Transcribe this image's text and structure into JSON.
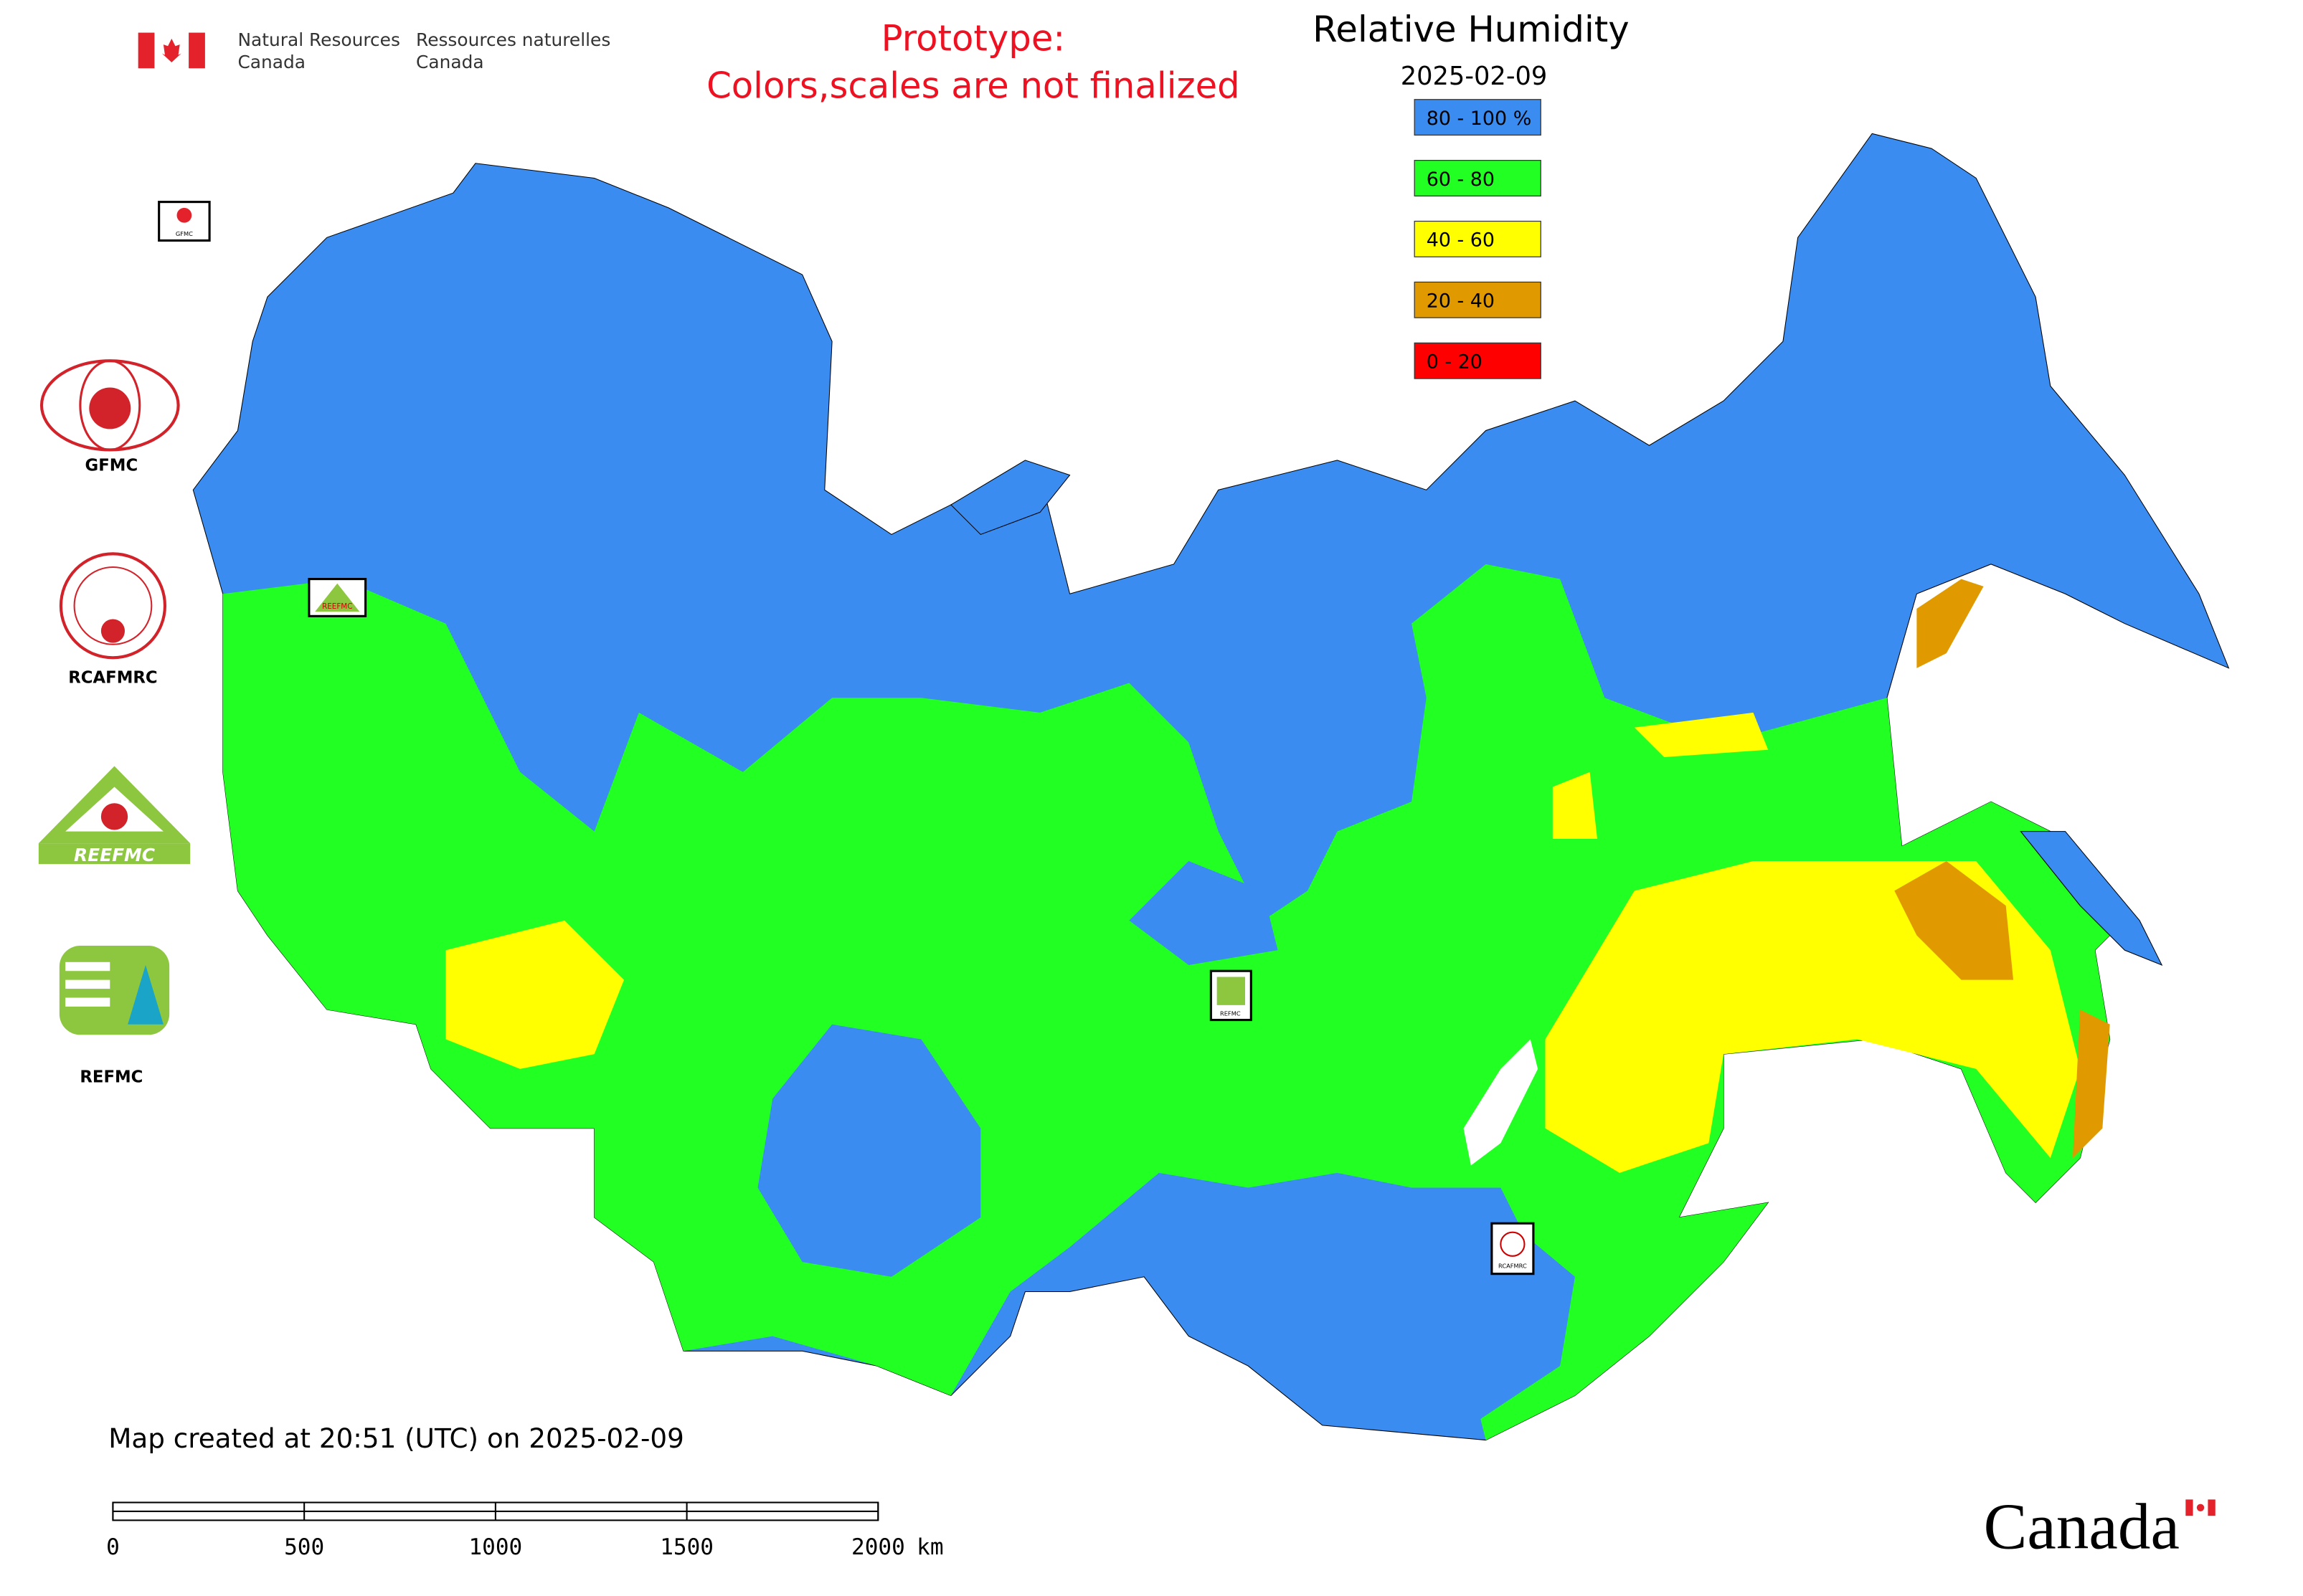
{
  "header": {
    "ministry_en": [
      "Natural Resources",
      "Canada"
    ],
    "ministry_fr": [
      "Ressources naturelles",
      "Canada"
    ],
    "notice": [
      "Prototype:",
      "Colors,scales are not finalized"
    ],
    "title": "Relative Humidity",
    "date": "2025-02-09"
  },
  "legend": [
    {
      "label": "80 - 100 %",
      "color": "#3a8cf0"
    },
    {
      "label": "60 - 80",
      "color": "#22ff22"
    },
    {
      "label": "40 - 60",
      "color": "#ffff00"
    },
    {
      "label": "20 - 40",
      "color": "#e09a00"
    },
    {
      "label": "0 - 20",
      "color": "#ff0000"
    }
  ],
  "logos": [
    {
      "label": "GFMC"
    },
    {
      "label": "RCAFMRC"
    },
    {
      "label": "REEFMC"
    },
    {
      "label": "REFMC"
    }
  ],
  "map_markers": [
    {
      "label": "GFMC"
    },
    {
      "label": "REEFMC"
    },
    {
      "label": "REFMC"
    },
    {
      "label": "RCAFMRC"
    }
  ],
  "footer": {
    "created": "Map created at 20:51 (UTC) on 2025-02-09",
    "wordmark": "Canada"
  },
  "scale_bar": {
    "ticks": [
      0,
      500,
      1000,
      1500,
      2000
    ],
    "unit": "km"
  }
}
